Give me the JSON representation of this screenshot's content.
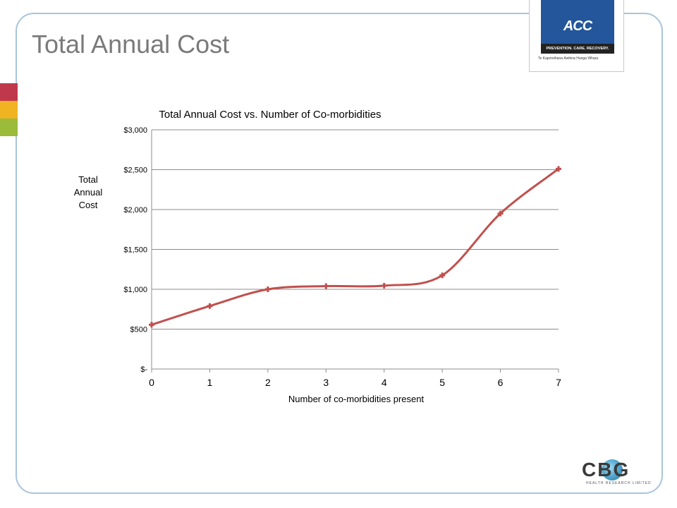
{
  "slide": {
    "title": "Total Annual Cost"
  },
  "logos": {
    "acc": {
      "wordmark": "ACC",
      "tagline": "PREVENTION. CARE. RECOVERY.",
      "subtitle": "Te Kaporeihana Āwhina Hunga Whara"
    },
    "cbg": {
      "wordmark": "CBG",
      "subtitle": "HEALTH RESEARCH LIMITED"
    }
  },
  "colors": {
    "series": "#c0504d",
    "grid": "#8c8c8c",
    "axis": "#8c8c8c",
    "frame": "#a9c4dc",
    "title": "#7a7a7a"
  },
  "chart_data": {
    "type": "line",
    "title": "Total Annual Cost vs. Number of Co-morbidities",
    "xlabel": "Number of co-morbidities present",
    "ylabel": [
      "Total",
      "Annual",
      "Cost"
    ],
    "x": [
      0,
      1,
      2,
      3,
      4,
      5,
      6,
      7
    ],
    "series": [
      {
        "values": [
          555,
          790,
          1000,
          1040,
          1045,
          1175,
          1950,
          2510
        ]
      }
    ],
    "xlim": [
      0,
      7
    ],
    "ylim": [
      0,
      3000
    ],
    "yticks": [
      0,
      500,
      1000,
      1500,
      2000,
      2500,
      3000
    ],
    "ytick_labels": [
      "$-",
      "$500",
      "$1,000",
      "$1,500",
      "$2,000",
      "$2,500",
      "$3,000"
    ],
    "xtick_labels": [
      "0",
      "1",
      "2",
      "3",
      "4",
      "5",
      "6",
      "7"
    ],
    "grid": true,
    "smooth": true
  }
}
